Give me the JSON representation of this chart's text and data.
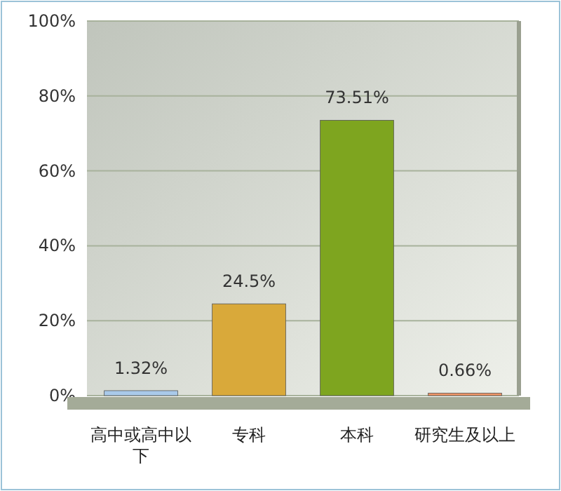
{
  "chart_data": {
    "type": "bar",
    "categories": [
      "高中或高中以下",
      "专科",
      "本科",
      "研究生及以上"
    ],
    "values": [
      1.32,
      24.5,
      73.51,
      0.66
    ],
    "colors": [
      "#a9c9e9",
      "#d9a93a",
      "#7ea51f",
      "#ef9466"
    ],
    "value_labels": [
      "1.32%",
      "24.5%",
      "73.51%",
      "0.66%"
    ],
    "ylim": [
      0,
      100
    ],
    "yticks": [
      {
        "value": 0,
        "label": "0%"
      },
      {
        "value": 20,
        "label": "20%"
      },
      {
        "value": 40,
        "label": "40%"
      },
      {
        "value": 60,
        "label": "60%"
      },
      {
        "value": 80,
        "label": "80%"
      },
      {
        "value": 100,
        "label": "100%"
      }
    ],
    "grid": "y"
  }
}
